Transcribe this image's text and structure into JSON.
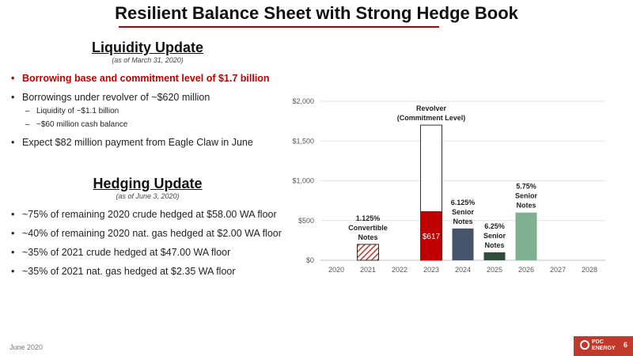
{
  "title": "Resilient Balance Sheet with Strong Hedge Book",
  "liquidity": {
    "heading": "Liquidity Update",
    "as_of": "(as of March 31, 2020)",
    "bullets": [
      "Borrowing base and commitment level of $1.7 billion",
      "Borrowings under revolver of ~$620 million",
      "Expect $82 million payment from Eagle Claw in June"
    ],
    "sub_bullets": [
      "Liquidity of ~$1.1 billion",
      "~$60 million cash balance"
    ]
  },
  "hedging": {
    "heading": "Hedging Update",
    "as_of": "(as of June 3, 2020)",
    "bullets": [
      "~75% of remaining 2020 crude hedged at $58.00 WA floor",
      "~40% of remaining 2020 nat. gas hedged at $2.00 WA floor",
      "~35% of 2021 crude hedged at $47.00 WA floor",
      "~35% of 2021 nat. gas hedged at $2.35 WA floor"
    ]
  },
  "chart_data": {
    "type": "bar",
    "categories": [
      "2020",
      "2021",
      "2022",
      "2023",
      "2024",
      "2025",
      "2026",
      "2027",
      "2028"
    ],
    "ylim": [
      0,
      2000
    ],
    "yticks": [
      0,
      500,
      1000,
      1500,
      2000
    ],
    "ytick_labels": [
      "$0",
      "$500",
      "$1,000",
      "$1,500",
      "$2,000"
    ],
    "bars": [
      {
        "category": "2021",
        "value": 200,
        "color": "#c0392b",
        "pattern": "hatch",
        "label_lines": [
          "1.125%",
          "Convertible",
          "Notes"
        ]
      },
      {
        "category": "2023",
        "value": 1700,
        "color": "#ffffff",
        "label_lines": [
          "Revolver",
          "(Commitment Level)"
        ]
      },
      {
        "category": "2023",
        "value": 617,
        "color": "#c00000",
        "inner_label": "$617",
        "label_lines": []
      },
      {
        "category": "2024",
        "value": 400,
        "color": "#44546a",
        "label_lines": [
          "6.125%",
          "Senior",
          "Notes"
        ]
      },
      {
        "category": "2025",
        "value": 100,
        "color": "#2e4d3b",
        "label_lines": [
          "6.25%",
          "Senior",
          "Notes"
        ]
      },
      {
        "category": "2026",
        "value": 600,
        "color": "#7fb092",
        "label_lines": [
          "5.75%",
          "Senior",
          "Notes"
        ]
      }
    ]
  },
  "footer": {
    "date": "June 2020",
    "logo_lines": [
      "PDC",
      "ENERGY"
    ],
    "page": "6"
  }
}
